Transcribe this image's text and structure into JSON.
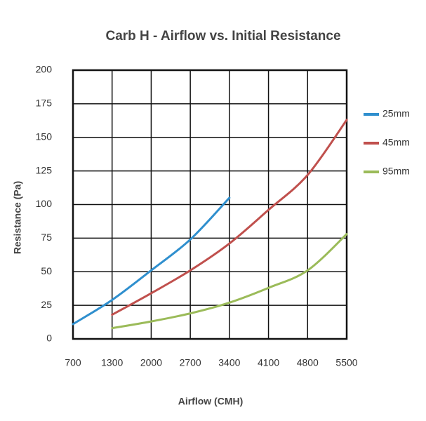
{
  "chart_data": {
    "type": "line",
    "title": "Carb H - Airflow vs. Initial Resistance",
    "x_axis_label": "Airflow (CMH)",
    "y_axis_label": "Resistance (Pa)",
    "categories": [
      "700",
      "1300",
      "2000",
      "2700",
      "3400",
      "4100",
      "4800",
      "5500"
    ],
    "series": [
      {
        "name": "25mm",
        "color": "#2f8fce",
        "values": [
          11,
          29,
          51,
          74,
          105,
          null,
          null,
          null
        ]
      },
      {
        "name": "45mm",
        "color": "#c0504d",
        "values": [
          null,
          18,
          34,
          51,
          71,
          96,
          122,
          163
        ]
      },
      {
        "name": "95mm",
        "color": "#9bbb59",
        "values": [
          null,
          8,
          13,
          19,
          27,
          38,
          51,
          78
        ]
      }
    ],
    "ylim": [
      0,
      200
    ],
    "yticks": [
      0,
      25,
      50,
      75,
      100,
      125,
      150,
      175,
      200
    ],
    "grid": true,
    "legend": "right"
  }
}
